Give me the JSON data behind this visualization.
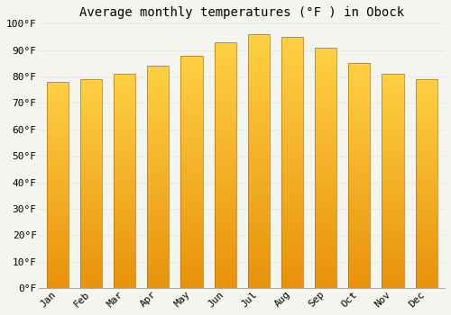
{
  "title": "Average monthly temperatures (°F ) in Obock",
  "months": [
    "Jan",
    "Feb",
    "Mar",
    "Apr",
    "May",
    "Jun",
    "Jul",
    "Aug",
    "Sep",
    "Oct",
    "Nov",
    "Dec"
  ],
  "values": [
    78,
    79,
    81,
    84,
    88,
    93,
    96,
    95,
    91,
    85,
    81,
    79
  ],
  "ylim": [
    0,
    100
  ],
  "yticks": [
    0,
    10,
    20,
    30,
    40,
    50,
    60,
    70,
    80,
    90,
    100
  ],
  "ytick_labels": [
    "0°F",
    "10°F",
    "20°F",
    "30°F",
    "40°F",
    "50°F",
    "60°F",
    "70°F",
    "80°F",
    "90°F",
    "100°F"
  ],
  "background_color": "#f5f5f0",
  "grid_color": "#e8e8e8",
  "bar_color_light": "#FFD044",
  "bar_color_dark": "#E8920A",
  "bar_edge_color": "#B8740A",
  "title_fontsize": 10,
  "tick_fontsize": 8,
  "bar_width": 0.65
}
